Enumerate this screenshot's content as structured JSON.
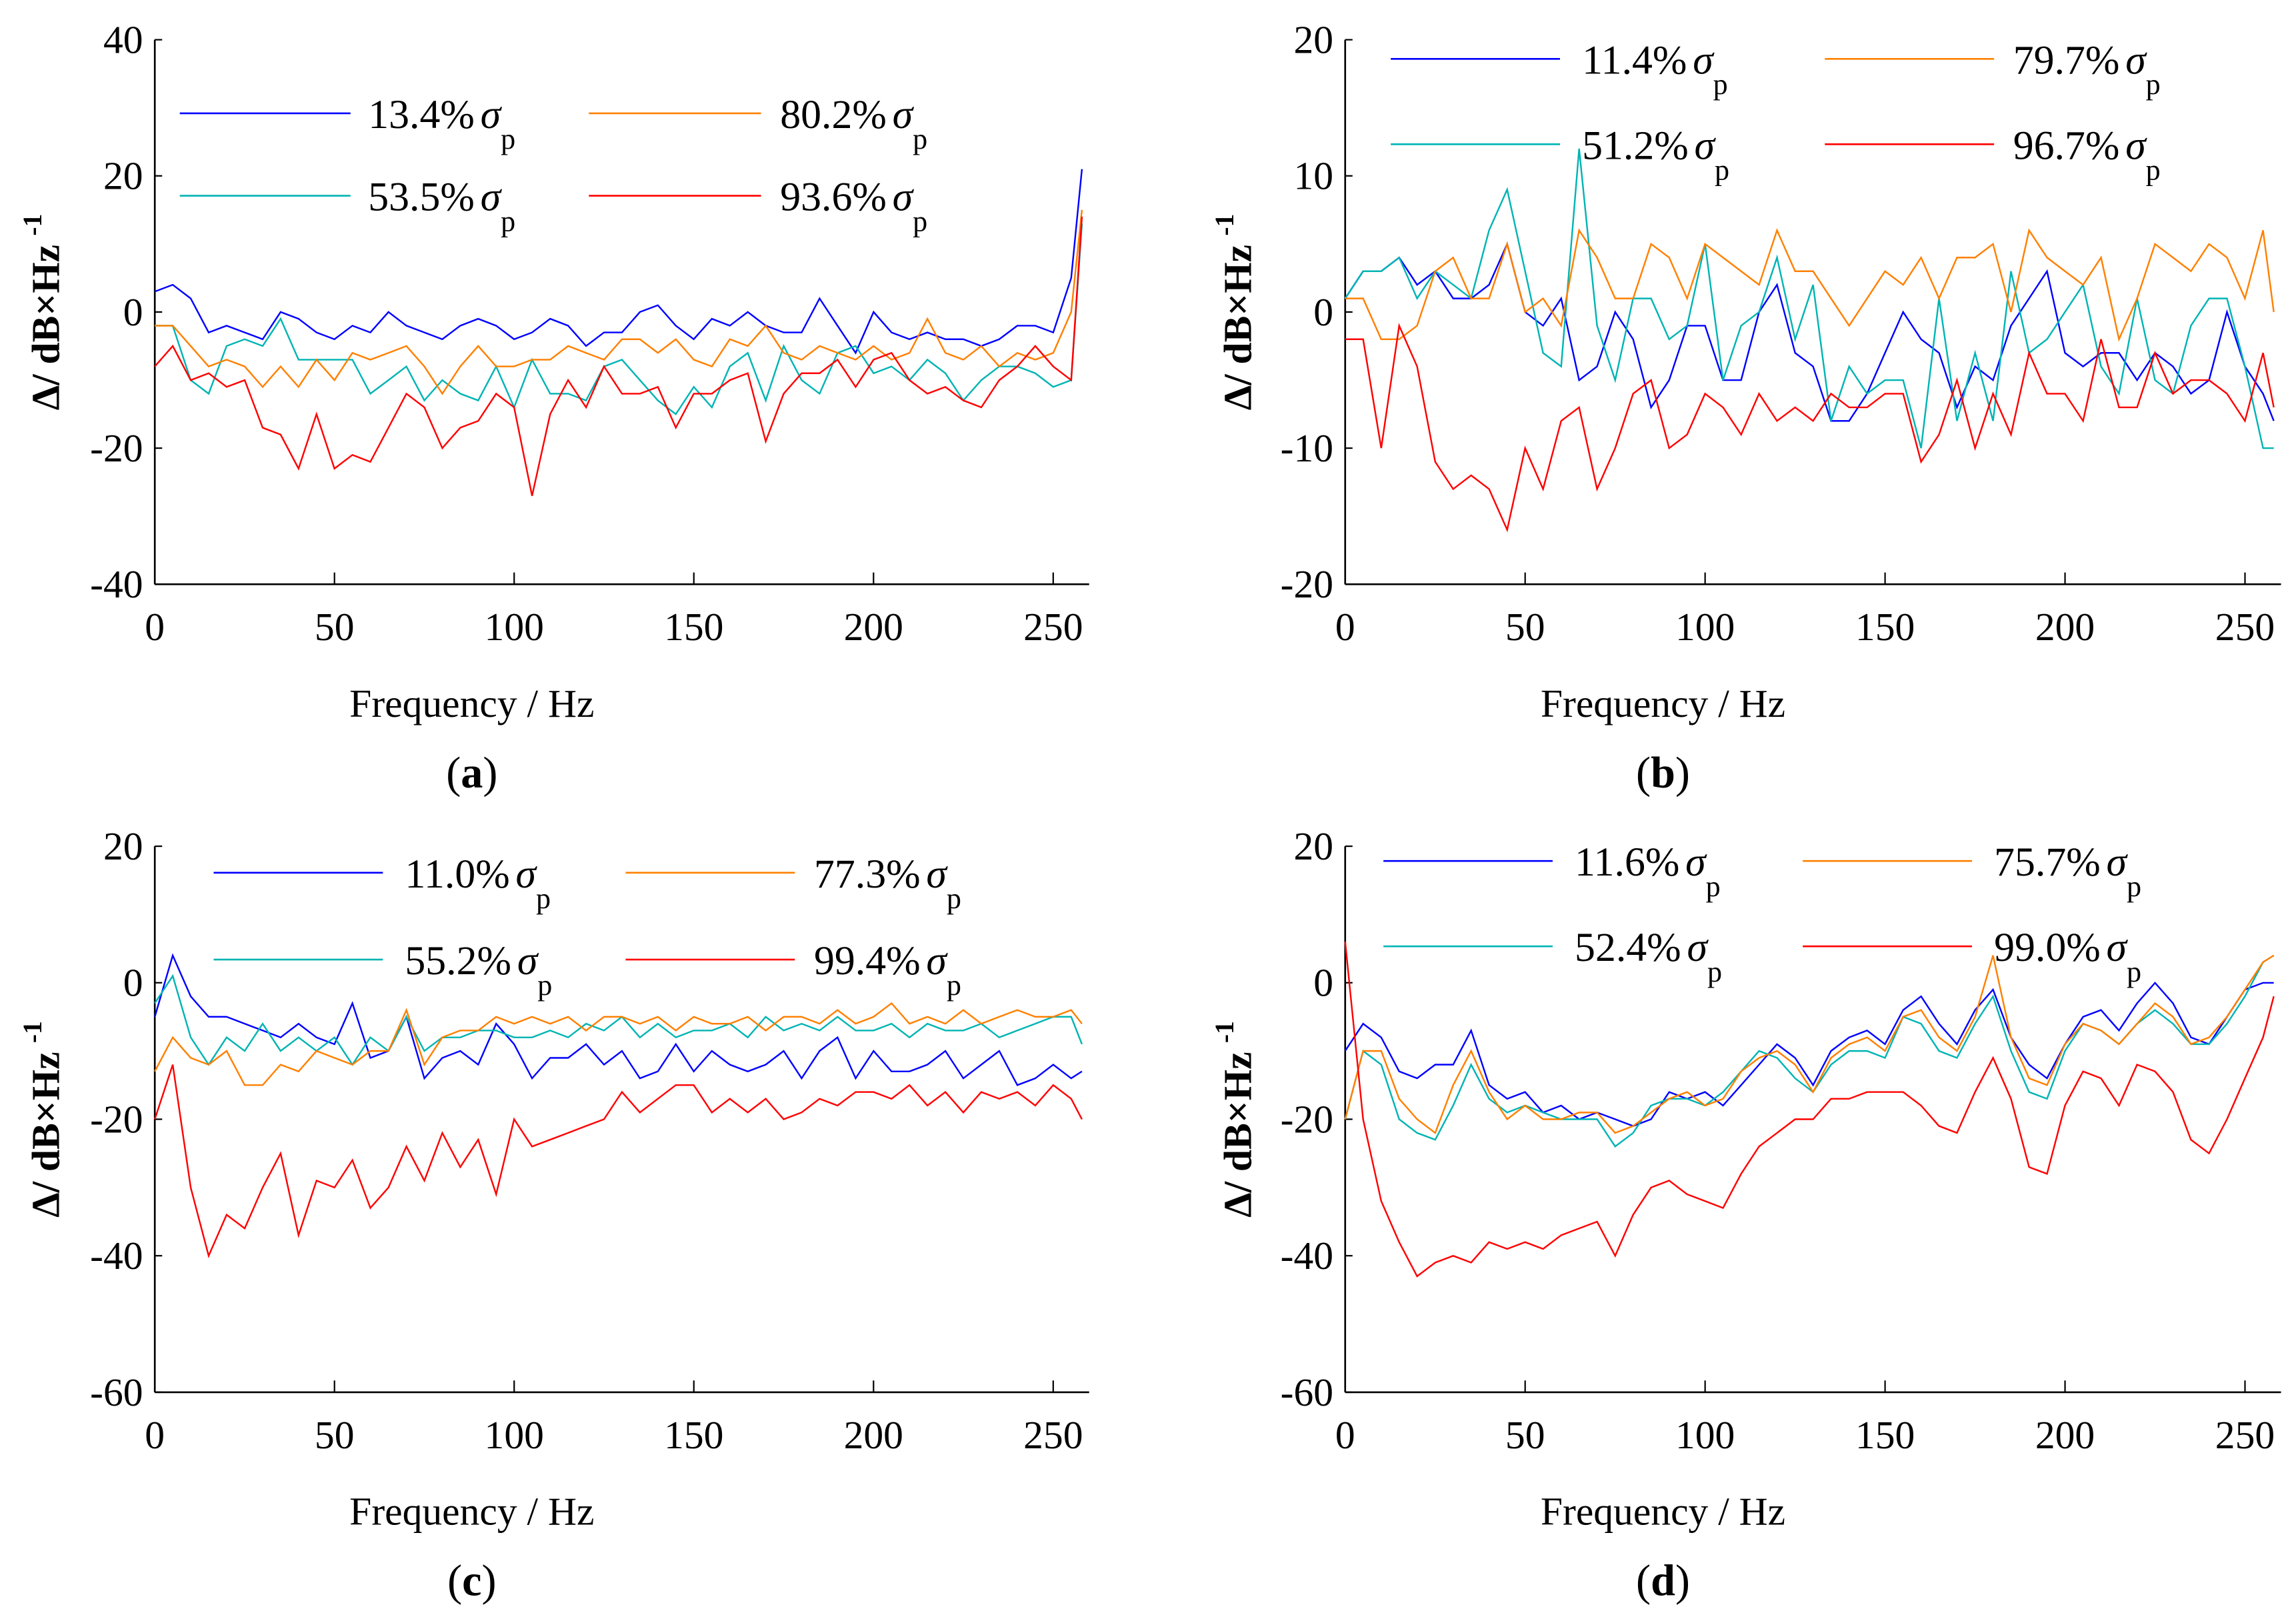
{
  "chart_data": [
    {
      "id": "a",
      "type": "line",
      "panel_label": "a",
      "xlabel": "Frequency / Hz",
      "ylabel": "Δ/ dB×Hz",
      "ylabel_sup": "-1",
      "xlim": [
        0,
        260
      ],
      "ylim": [
        -40,
        40
      ],
      "xticks": [
        0,
        50,
        100,
        150,
        200,
        250
      ],
      "yticks": [
        -40,
        -20,
        0,
        20,
        40
      ],
      "series": [
        {
          "name": "13.4%",
          "color": "#0000ff",
          "y": [
            3,
            4,
            2,
            -3,
            -2,
            -3,
            -4,
            0,
            -1,
            -3,
            -4,
            -2,
            -3,
            0,
            -2,
            -3,
            -4,
            -2,
            -1,
            -2,
            -4,
            -3,
            -1,
            -2,
            -5,
            -3,
            -3,
            0,
            1,
            -2,
            -4,
            -1,
            -2,
            0,
            -2,
            -3,
            -3,
            2,
            -2,
            -6,
            0,
            -3,
            -4,
            -3,
            -4,
            -4,
            -5,
            -4,
            -2,
            -2,
            -3,
            5,
            21
          ]
        },
        {
          "name": "53.5%",
          "color": "#00b4b4",
          "y": [
            -2,
            -2,
            -10,
            -12,
            -5,
            -4,
            -5,
            -1,
            -7,
            -7,
            -7,
            -7,
            -12,
            -10,
            -8,
            -13,
            -10,
            -12,
            -13,
            -8,
            -14,
            -7,
            -12,
            -12,
            -13,
            -8,
            -7,
            -10,
            -13,
            -15,
            -11,
            -14,
            -8,
            -6,
            -13,
            -5,
            -10,
            -12,
            -6,
            -5,
            -9,
            -8,
            -10,
            -7,
            -9,
            -13,
            -10,
            -8,
            -8,
            -9,
            -11,
            -10,
            13
          ]
        },
        {
          "name": "80.2%",
          "color": "#ff8000",
          "y": [
            -2,
            -2,
            -5,
            -8,
            -7,
            -8,
            -11,
            -8,
            -11,
            -7,
            -10,
            -6,
            -7,
            -6,
            -5,
            -8,
            -12,
            -8,
            -5,
            -8,
            -8,
            -7,
            -7,
            -5,
            -6,
            -7,
            -4,
            -4,
            -6,
            -4,
            -7,
            -8,
            -4,
            -5,
            -2,
            -6,
            -7,
            -5,
            -6,
            -7,
            -5,
            -7,
            -6,
            -1,
            -6,
            -7,
            -5,
            -8,
            -6,
            -7,
            -6,
            0,
            15
          ]
        },
        {
          "name": "93.6%",
          "color": "#ff0000",
          "y": [
            -8,
            -5,
            -10,
            -9,
            -11,
            -10,
            -17,
            -18,
            -23,
            -15,
            -23,
            -21,
            -22,
            -17,
            -12,
            -14,
            -20,
            -17,
            -16,
            -12,
            -14,
            -27,
            -15,
            -10,
            -14,
            -8,
            -12,
            -12,
            -11,
            -17,
            -12,
            -12,
            -10,
            -9,
            -19,
            -12,
            -9,
            -9,
            -7,
            -11,
            -7,
            -6,
            -10,
            -12,
            -11,
            -13,
            -14,
            -10,
            -8,
            -5,
            -8,
            -10,
            14
          ]
        }
      ]
    },
    {
      "id": "b",
      "type": "line",
      "panel_label": "b",
      "xlabel": "Frequency / Hz",
      "ylabel": "Δ/ dB×Hz",
      "ylabel_sup": "-1",
      "xlim": [
        0,
        260
      ],
      "ylim": [
        -20,
        20
      ],
      "xticks": [
        0,
        50,
        100,
        150,
        200,
        250
      ],
      "yticks": [
        -20,
        -10,
        0,
        10,
        20
      ],
      "series": [
        {
          "name": "11.4%",
          "color": "#0000ff",
          "y": [
            1,
            3,
            3,
            4,
            2,
            3,
            1,
            1,
            2,
            5,
            0,
            -1,
            1,
            -5,
            -4,
            0,
            -2,
            -7,
            -5,
            -1,
            -1,
            -5,
            -5,
            0,
            2,
            -3,
            -4,
            -8,
            -8,
            -6,
            -3,
            0,
            -2,
            -3,
            -7,
            -4,
            -5,
            -1,
            1,
            3,
            -3,
            -4,
            -3,
            -3,
            -5,
            -3,
            -4,
            -6,
            -5,
            0,
            -4,
            -6,
            -8
          ]
        },
        {
          "name": "51.2%",
          "color": "#00b4b4",
          "y": [
            1,
            3,
            3,
            4,
            1,
            3,
            2,
            1,
            6,
            9,
            3,
            -3,
            -4,
            12,
            -1,
            -5,
            1,
            1,
            -2,
            -1,
            5,
            -5,
            -1,
            0,
            4,
            -2,
            2,
            -8,
            -4,
            -6,
            -5,
            -5,
            -10,
            1,
            -8,
            -3,
            -8,
            3,
            -3,
            -2,
            0,
            2,
            -4,
            -6,
            1,
            -5,
            -6,
            -1,
            1,
            1,
            -4,
            -10,
            -10
          ]
        },
        {
          "name": "79.7%",
          "color": "#ff8000",
          "y": [
            1,
            1,
            -2,
            -2,
            -1,
            3,
            4,
            1,
            1,
            5,
            0,
            1,
            -1,
            6,
            4,
            1,
            1,
            5,
            4,
            1,
            5,
            4,
            3,
            2,
            6,
            3,
            3,
            1,
            -1,
            1,
            3,
            2,
            4,
            1,
            4,
            4,
            5,
            0,
            6,
            4,
            3,
            2,
            4,
            -2,
            1,
            5,
            4,
            3,
            5,
            4,
            1,
            6,
            0
          ]
        },
        {
          "name": "96.7%",
          "color": "#ff0000",
          "y": [
            -2,
            -2,
            -10,
            -1,
            -4,
            -11,
            -13,
            -12,
            -13,
            -16,
            -10,
            -13,
            -8,
            -7,
            -13,
            -10,
            -6,
            -5,
            -10,
            -9,
            -6,
            -7,
            -9,
            -6,
            -8,
            -7,
            -8,
            -6,
            -7,
            -7,
            -6,
            -6,
            -11,
            -9,
            -5,
            -10,
            -6,
            -9,
            -3,
            -6,
            -6,
            -8,
            -2,
            -7,
            -7,
            -3,
            -6,
            -5,
            -5,
            -6,
            -8,
            -3,
            -7
          ]
        }
      ]
    },
    {
      "id": "c",
      "type": "line",
      "panel_label": "c",
      "xlabel": "Frequency / Hz",
      "ylabel": "Δ/ dB×Hz",
      "ylabel_sup": "-1",
      "xlim": [
        0,
        260
      ],
      "ylim": [
        -60,
        20
      ],
      "xticks": [
        0,
        50,
        100,
        150,
        200,
        250
      ],
      "yticks": [
        -60,
        -40,
        -20,
        0,
        20
      ],
      "series": [
        {
          "name": "11.0%",
          "color": "#0000ff",
          "y": [
            -5,
            4,
            -2,
            -5,
            -5,
            -6,
            -7,
            -8,
            -6,
            -8,
            -9,
            -3,
            -11,
            -10,
            -5,
            -14,
            -11,
            -10,
            -12,
            -6,
            -9,
            -14,
            -11,
            -11,
            -9,
            -12,
            -10,
            -14,
            -13,
            -9,
            -13,
            -10,
            -12,
            -13,
            -12,
            -10,
            -14,
            -10,
            -8,
            -14,
            -10,
            -13,
            -13,
            -12,
            -10,
            -14,
            -12,
            -10,
            -15,
            -14,
            -12,
            -14,
            -13
          ]
        },
        {
          "name": "55.2%",
          "color": "#00b4b4",
          "y": [
            -3,
            1,
            -8,
            -12,
            -8,
            -10,
            -6,
            -10,
            -8,
            -10,
            -8,
            -12,
            -8,
            -10,
            -5,
            -10,
            -8,
            -8,
            -7,
            -7,
            -8,
            -8,
            -7,
            -8,
            -6,
            -7,
            -5,
            -8,
            -6,
            -8,
            -7,
            -7,
            -6,
            -8,
            -5,
            -7,
            -6,
            -7,
            -5,
            -7,
            -7,
            -6,
            -8,
            -6,
            -7,
            -7,
            -6,
            -8,
            -7,
            -6,
            -5,
            -5,
            -9
          ]
        },
        {
          "name": "77.3%",
          "color": "#ff8000",
          "y": [
            -13,
            -8,
            -11,
            -12,
            -10,
            -15,
            -15,
            -12,
            -13,
            -10,
            -11,
            -12,
            -10,
            -10,
            -4,
            -12,
            -8,
            -7,
            -7,
            -5,
            -6,
            -5,
            -6,
            -5,
            -7,
            -5,
            -5,
            -6,
            -5,
            -7,
            -5,
            -6,
            -6,
            -5,
            -7,
            -5,
            -5,
            -6,
            -4,
            -6,
            -5,
            -3,
            -6,
            -5,
            -6,
            -4,
            -6,
            -5,
            -4,
            -5,
            -5,
            -4,
            -6
          ]
        },
        {
          "name": "99.4%",
          "color": "#ff0000",
          "y": [
            -20,
            -12,
            -30,
            -40,
            -34,
            -36,
            -30,
            -25,
            -37,
            -29,
            -30,
            -26,
            -33,
            -30,
            -24,
            -29,
            -22,
            -27,
            -23,
            -31,
            -20,
            -24,
            -23,
            -22,
            -21,
            -20,
            -16,
            -19,
            -17,
            -15,
            -15,
            -19,
            -17,
            -19,
            -17,
            -20,
            -19,
            -17,
            -18,
            -16,
            -16,
            -17,
            -15,
            -18,
            -16,
            -19,
            -16,
            -17,
            -16,
            -18,
            -15,
            -17,
            -20
          ]
        }
      ]
    },
    {
      "id": "d",
      "type": "line",
      "panel_label": "d",
      "xlabel": "Frequency / Hz",
      "ylabel": "Δ/ dB×Hz",
      "ylabel_sup": "-1",
      "xlim": [
        0,
        260
      ],
      "ylim": [
        -60,
        20
      ],
      "xticks": [
        0,
        50,
        100,
        150,
        200,
        250
      ],
      "yticks": [
        -60,
        -40,
        -20,
        0,
        20
      ],
      "series": [
        {
          "name": "11.6%",
          "color": "#0000ff",
          "y": [
            -10,
            -6,
            -8,
            -13,
            -14,
            -12,
            -12,
            -7,
            -15,
            -17,
            -16,
            -19,
            -18,
            -20,
            -19,
            -20,
            -21,
            -20,
            -16,
            -17,
            -16,
            -18,
            -15,
            -12,
            -9,
            -11,
            -15,
            -10,
            -8,
            -7,
            -9,
            -4,
            -2,
            -6,
            -9,
            -4,
            -1,
            -8,
            -12,
            -14,
            -9,
            -5,
            -4,
            -7,
            -3,
            0,
            -3,
            -8,
            -9,
            -5,
            -1,
            0,
            0
          ]
        },
        {
          "name": "52.4%",
          "color": "#00b4b4",
          "y": [
            -20,
            -10,
            -12,
            -20,
            -22,
            -23,
            -18,
            -12,
            -17,
            -19,
            -18,
            -19,
            -20,
            -20,
            -20,
            -24,
            -22,
            -18,
            -17,
            -17,
            -18,
            -16,
            -13,
            -10,
            -11,
            -14,
            -16,
            -12,
            -10,
            -10,
            -11,
            -5,
            -6,
            -10,
            -11,
            -6,
            -2,
            -10,
            -16,
            -17,
            -10,
            -6,
            -7,
            -9,
            -6,
            -4,
            -6,
            -9,
            -9,
            -6,
            -2,
            3,
            4
          ]
        },
        {
          "name": "75.7%",
          "color": "#ff8000",
          "y": [
            -20,
            -10,
            -10,
            -17,
            -20,
            -22,
            -15,
            -10,
            -16,
            -20,
            -18,
            -20,
            -20,
            -19,
            -19,
            -22,
            -21,
            -19,
            -17,
            -16,
            -18,
            -17,
            -13,
            -11,
            -10,
            -12,
            -16,
            -11,
            -9,
            -8,
            -10,
            -5,
            -4,
            -8,
            -10,
            -5,
            4,
            -8,
            -14,
            -15,
            -9,
            -6,
            -7,
            -9,
            -6,
            -3,
            -5,
            -9,
            -8,
            -5,
            -1,
            3,
            4
          ]
        },
        {
          "name": "99.0%",
          "color": "#ff0000",
          "y": [
            6,
            -20,
            -32,
            -38,
            -43,
            -41,
            -40,
            -41,
            -38,
            -39,
            -38,
            -39,
            -37,
            -36,
            -35,
            -40,
            -34,
            -30,
            -29,
            -31,
            -32,
            -33,
            -28,
            -24,
            -22,
            -20,
            -20,
            -17,
            -17,
            -16,
            -16,
            -16,
            -18,
            -21,
            -22,
            -16,
            -11,
            -17,
            -27,
            -28,
            -18,
            -13,
            -14,
            -18,
            -12,
            -13,
            -16,
            -23,
            -25,
            -20,
            -14,
            -8,
            -2
          ]
        }
      ]
    }
  ],
  "x_values": [
    0,
    5,
    10,
    15,
    20,
    25,
    30,
    35,
    40,
    45,
    50,
    55,
    60,
    65,
    70,
    75,
    80,
    85,
    90,
    95,
    100,
    105,
    110,
    115,
    120,
    125,
    130,
    135,
    140,
    145,
    150,
    155,
    160,
    165,
    170,
    175,
    180,
    185,
    190,
    195,
    200,
    205,
    210,
    215,
    220,
    225,
    230,
    235,
    240,
    245,
    250,
    255,
    258
  ],
  "legend_symbol": "σ",
  "legend_subscript": "p"
}
